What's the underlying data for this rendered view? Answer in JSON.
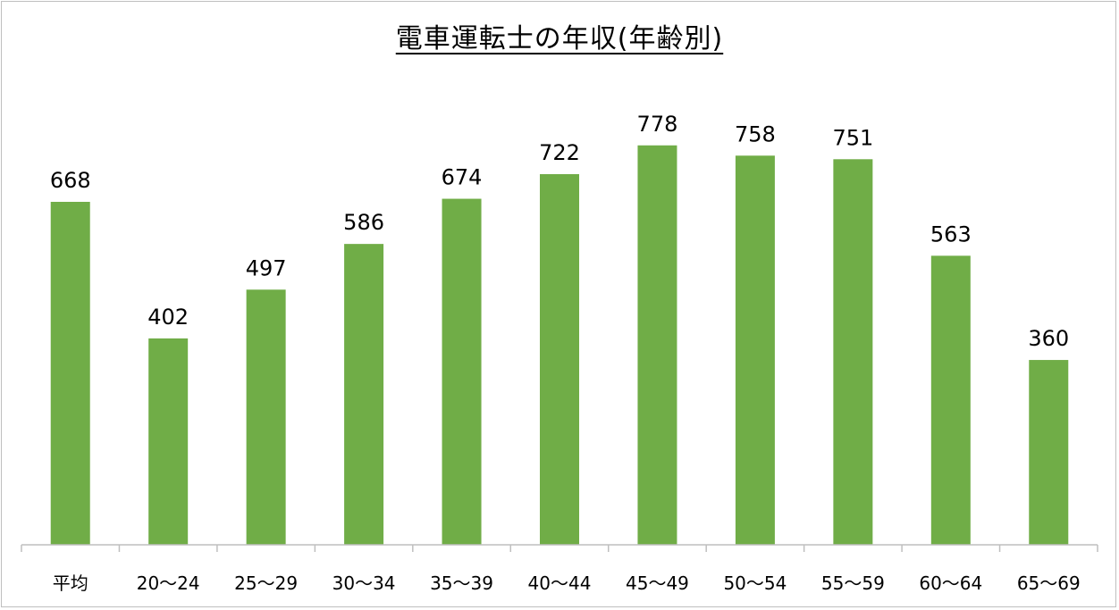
{
  "chart_data": {
    "type": "bar",
    "title": "電車運転士の年収(年齢別)",
    "xlabel": "",
    "ylabel": "",
    "categories": [
      "平均",
      "20〜24",
      "25〜29",
      "30〜34",
      "35〜39",
      "40〜44",
      "45〜49",
      "50〜54",
      "55〜59",
      "60〜64",
      "65〜69"
    ],
    "values": [
      668,
      402,
      497,
      586,
      674,
      722,
      778,
      758,
      751,
      563,
      360
    ],
    "ylim": [
      0,
      820
    ],
    "grid": false,
    "legend": "none",
    "bar_color": "#70ad47",
    "axis_color": "#bfbfbf"
  }
}
